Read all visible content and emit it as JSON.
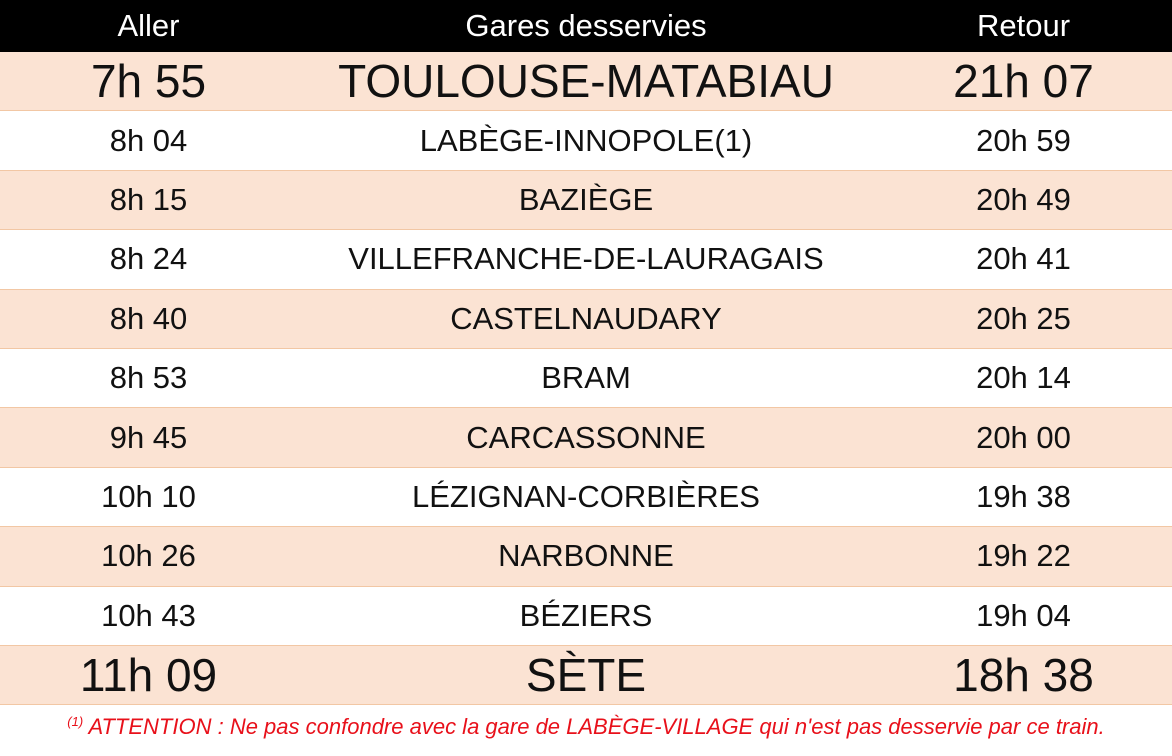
{
  "colors": {
    "header_bg": "#000000",
    "header_text": "#ffffff",
    "row_shaded": "#fbe3d3",
    "row_plain": "#ffffff",
    "row_border": "#f2c7a4",
    "footnote_text": "#e8101a"
  },
  "header": {
    "aller": "Aller",
    "gares": "Gares desservies",
    "retour": "Retour"
  },
  "rows": [
    {
      "aller": "7h 55",
      "gare": "TOULOUSE-MATABIAU",
      "retour": "21h 07"
    },
    {
      "aller": "8h 04",
      "gare": "LABÈGE-INNOPOLE(1)",
      "retour": "20h 59"
    },
    {
      "aller": "8h 15",
      "gare": "BAZIÈGE",
      "retour": "20h 49"
    },
    {
      "aller": "8h 24",
      "gare": "VILLEFRANCHE-DE-LAURAGAIS",
      "retour": "20h 41"
    },
    {
      "aller": "8h 40",
      "gare": "CASTELNAUDARY",
      "retour": "20h 25"
    },
    {
      "aller": "8h 53",
      "gare": "BRAM",
      "retour": "20h 14"
    },
    {
      "aller": "9h 45",
      "gare": "CARCASSONNE",
      "retour": "20h 00"
    },
    {
      "aller": "10h 10",
      "gare": "LÉZIGNAN-CORBIÈRES",
      "retour": "19h 38"
    },
    {
      "aller": "10h 26",
      "gare": "NARBONNE",
      "retour": "19h 22"
    },
    {
      "aller": "10h 43",
      "gare": "BÉZIERS",
      "retour": "19h 04"
    },
    {
      "aller": "11h 09",
      "gare": "SÈTE",
      "retour": "18h 38"
    }
  ],
  "footnote": {
    "marker": "(1)",
    "text": " ATTENTION : Ne pas confondre avec la gare de LABÈGE-VILLAGE qui n'est pas desservie par ce train."
  }
}
